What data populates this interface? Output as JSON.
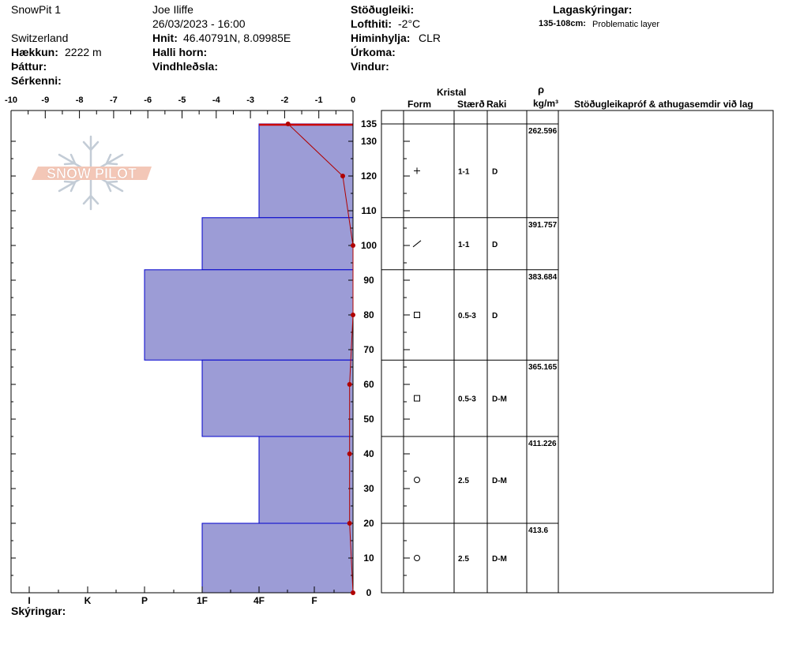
{
  "header": {
    "pit_name": "SnowPit 1",
    "observer": "Joe Iliffe",
    "datetime": "26/03/2023 - 16:00",
    "country": "Switzerland",
    "elevation_label": "Hækkun:",
    "elevation_value": "2222 m",
    "coords_label": "Hnit:",
    "coords_value": "46.40791N, 8.09985E",
    "aspect_label": "Þáttur:",
    "slope_label": "Halli horn:",
    "features_label": "Sérkenni:",
    "wind_loading_label": "Vindhleðsla:",
    "stability_label": "Stöðugleiki:",
    "air_temp_label": "Lofthiti:",
    "air_temp_value": "-2°C",
    "sky_label": "Himinhylja:",
    "sky_value": "CLR",
    "precip_label": "Úrkoma:",
    "wind_label": "Vindur:",
    "legend_title": "Lagaskýringar:",
    "legend_range": "135-108cm:",
    "legend_text": "Problematic layer",
    "footer_label": "Skýringar:"
  },
  "logo": {
    "text": "SNOW PILOT"
  },
  "table_header": {
    "crystal": "Kristal",
    "form": "Form",
    "size": "Stærð",
    "moisture": "Raki",
    "rho": "ρ",
    "density_unit": "kg/m³",
    "comments": "Stöðugleikapróf & athugasemdir við lag"
  },
  "colors": {
    "hardness_fill": "#9c9cd6",
    "hardness_stroke": "#0000cc",
    "temp": "#b00000",
    "problem": "#cc0000"
  },
  "chart_data": {
    "type": "bar",
    "temp_axis": {
      "min": -10,
      "max": 0,
      "ticks": [
        "-10",
        "-9",
        "-8",
        "-7",
        "-6",
        "-5",
        "-4",
        "-3",
        "-2",
        "-1",
        "0"
      ]
    },
    "height_axis": {
      "min": 0,
      "max": 135,
      "ticks": [
        "0",
        "10",
        "20",
        "30",
        "40",
        "50",
        "60",
        "70",
        "80",
        "90",
        "100",
        "110",
        "120",
        "130",
        "135"
      ]
    },
    "hardness_axis": {
      "labels": [
        "I",
        "K",
        "P",
        "1F",
        "4F",
        "F"
      ]
    },
    "layers": [
      {
        "top": 135,
        "bottom": 108,
        "hardness": "4F",
        "form_icon": "plus-icon",
        "size": "1-1",
        "moisture": "D",
        "density": "262.596"
      },
      {
        "top": 108,
        "bottom": 93,
        "hardness": "1F",
        "form_icon": "slash-icon",
        "size": "1-1",
        "moisture": "D",
        "density": "391.757"
      },
      {
        "top": 93,
        "bottom": 67,
        "hardness": "P",
        "form_icon": "square-icon",
        "size": "0.5-3",
        "moisture": "D",
        "density": "383.684"
      },
      {
        "top": 67,
        "bottom": 45,
        "hardness": "1F",
        "form_icon": "square-icon",
        "size": "0.5-3",
        "moisture": "D-M",
        "density": "365.165"
      },
      {
        "top": 45,
        "bottom": 20,
        "hardness": "4F",
        "form_icon": "circle-icon",
        "size": "2.5",
        "moisture": "D-M",
        "density": "411.226"
      },
      {
        "top": 20,
        "bottom": 0,
        "hardness": "1F",
        "form_icon": "circle-icon",
        "size": "2.5",
        "moisture": "D-M",
        "density": "413.6"
      }
    ],
    "temperature_profile": [
      {
        "height": 135,
        "temp": -1.9
      },
      {
        "height": 120,
        "temp": -0.3
      },
      {
        "height": 100,
        "temp": 0.0
      },
      {
        "height": 80,
        "temp": 0.0
      },
      {
        "height": 60,
        "temp": -0.1
      },
      {
        "height": 40,
        "temp": -0.1
      },
      {
        "height": 20,
        "temp": -0.1
      },
      {
        "height": 0,
        "temp": 0.0
      }
    ]
  }
}
